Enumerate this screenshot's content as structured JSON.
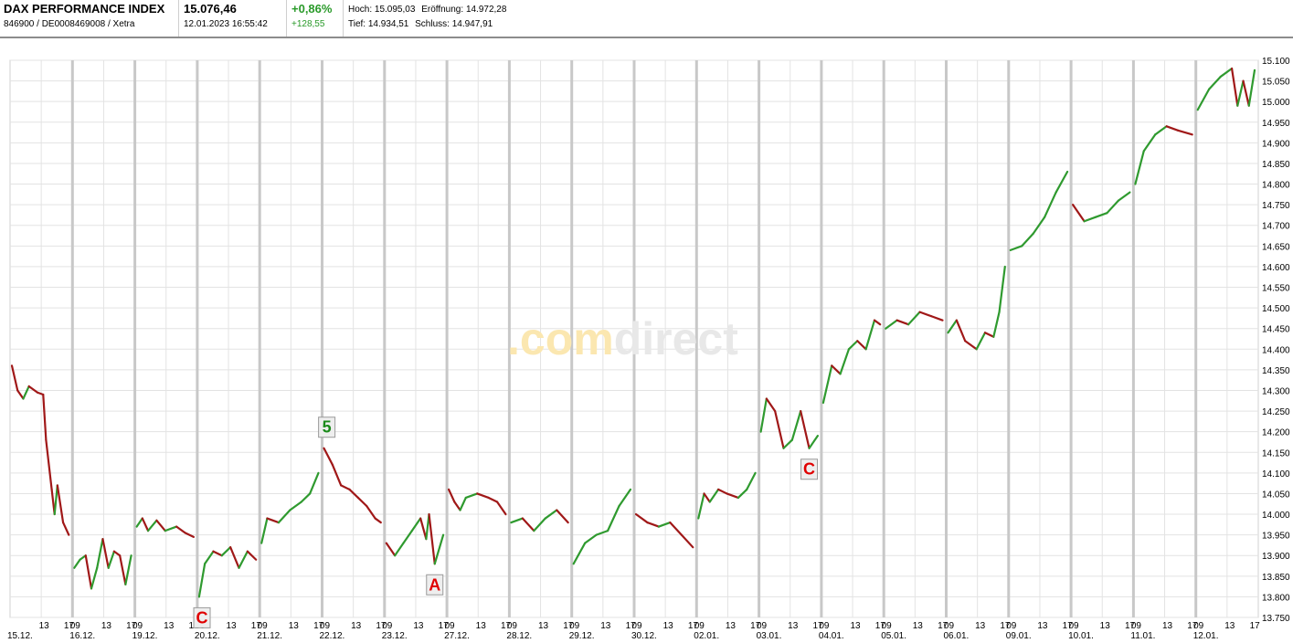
{
  "header": {
    "title": "DAX PERFORMANCE INDEX",
    "identifier": "846900 / DE0008469008 / Xetra",
    "price": "15.076,46",
    "datetime": "12.01.2023 16:55:42",
    "change_pct": "+0,86%",
    "change_abs": "+128,55",
    "hoch_label": "Hoch:",
    "hoch_value": "15.095,03",
    "eroeffnung_label": "Eröffnung:",
    "eroeffnung_value": "14.972,28",
    "tief_label": "Tief:",
    "tief_value": "14.934,51",
    "schluss_label": "Schluss:",
    "schluss_value": "14.947,91"
  },
  "watermark": {
    "part1": ".com",
    "part2": "direct"
  },
  "colors": {
    "up": "#2f9a2f",
    "down": "#a01818",
    "grid": "#e3e3e3",
    "day_sep": "#c8c8c8",
    "wm1": "#fbe7b0",
    "wm2": "#e8e8e8",
    "annotation_red": "#e00000",
    "annotation_green": "#1a8a1a"
  },
  "chart_data": {
    "type": "line",
    "title": "",
    "xlabel": "",
    "ylabel": "",
    "ylim": [
      13750,
      15100
    ],
    "y_ticks": [
      13750,
      13800,
      13850,
      13900,
      13950,
      14000,
      14050,
      14100,
      14150,
      14200,
      14250,
      14300,
      14350,
      14400,
      14450,
      14500,
      14550,
      14600,
      14650,
      14700,
      14750,
      14800,
      14850,
      14900,
      14950,
      15000,
      15050,
      15100
    ],
    "y_tick_labels": [
      "13.750",
      "13.800",
      "13.850",
      "13.900",
      "13.950",
      "14.000",
      "14.050",
      "14.100",
      "14.150",
      "14.200",
      "14.250",
      "14.300",
      "14.350",
      "14.400",
      "14.450",
      "14.500",
      "14.550",
      "14.600",
      "14.650",
      "14.700",
      "14.750",
      "14.800",
      "14.850",
      "14.900",
      "14.950",
      "15.000",
      "15.050",
      "15.100"
    ],
    "days": [
      "15.12.",
      "16.12.",
      "19.12.",
      "20.12.",
      "21.12.",
      "22.12.",
      "23.12.",
      "27.12.",
      "28.12.",
      "29.12.",
      "30.12.",
      "02.01.",
      "03.01.",
      "04.01.",
      "05.01.",
      "06.01.",
      "09.01.",
      "10.01.",
      "11.01.",
      "12.01."
    ],
    "hour_labels": [
      "09",
      "13",
      "17"
    ],
    "series": [
      {
        "points": [
          {
            "day": 0,
            "t": 0.0,
            "v": 14360
          },
          {
            "day": 0,
            "t": 0.1,
            "v": 14300
          },
          {
            "day": 0,
            "t": 0.2,
            "v": 14280
          },
          {
            "day": 0,
            "t": 0.3,
            "v": 14310
          },
          {
            "day": 0,
            "t": 0.45,
            "v": 14295
          },
          {
            "day": 0,
            "t": 0.55,
            "v": 14290
          },
          {
            "day": 0,
            "t": 0.6,
            "v": 14180
          },
          {
            "day": 0,
            "t": 0.7,
            "v": 14060
          },
          {
            "day": 0,
            "t": 0.75,
            "v": 14000
          },
          {
            "day": 0,
            "t": 0.8,
            "v": 14070
          },
          {
            "day": 0,
            "t": 0.9,
            "v": 13980
          },
          {
            "day": 0,
            "t": 1.0,
            "v": 13950
          },
          {
            "day": 1,
            "t": 0.0,
            "v": 13870
          },
          {
            "day": 1,
            "t": 0.1,
            "v": 13890
          },
          {
            "day": 1,
            "t": 0.2,
            "v": 13900
          },
          {
            "day": 1,
            "t": 0.3,
            "v": 13820
          },
          {
            "day": 1,
            "t": 0.4,
            "v": 13870
          },
          {
            "day": 1,
            "t": 0.5,
            "v": 13940
          },
          {
            "day": 1,
            "t": 0.6,
            "v": 13870
          },
          {
            "day": 1,
            "t": 0.7,
            "v": 13910
          },
          {
            "day": 1,
            "t": 0.8,
            "v": 13900
          },
          {
            "day": 1,
            "t": 0.9,
            "v": 13830
          },
          {
            "day": 1,
            "t": 1.0,
            "v": 13900
          },
          {
            "day": 2,
            "t": 0.0,
            "v": 13970
          },
          {
            "day": 2,
            "t": 0.1,
            "v": 13990
          },
          {
            "day": 2,
            "t": 0.2,
            "v": 13960
          },
          {
            "day": 2,
            "t": 0.35,
            "v": 13985
          },
          {
            "day": 2,
            "t": 0.5,
            "v": 13960
          },
          {
            "day": 2,
            "t": 0.7,
            "v": 13970
          },
          {
            "day": 2,
            "t": 0.85,
            "v": 13955
          },
          {
            "day": 2,
            "t": 1.0,
            "v": 13945
          },
          {
            "day": 3,
            "t": 0.0,
            "v": 13800
          },
          {
            "day": 3,
            "t": 0.1,
            "v": 13880
          },
          {
            "day": 3,
            "t": 0.25,
            "v": 13910
          },
          {
            "day": 3,
            "t": 0.4,
            "v": 13900
          },
          {
            "day": 3,
            "t": 0.55,
            "v": 13920
          },
          {
            "day": 3,
            "t": 0.7,
            "v": 13870
          },
          {
            "day": 3,
            "t": 0.85,
            "v": 13910
          },
          {
            "day": 3,
            "t": 1.0,
            "v": 13890
          },
          {
            "day": 4,
            "t": 0.0,
            "v": 13930
          },
          {
            "day": 4,
            "t": 0.1,
            "v": 13990
          },
          {
            "day": 4,
            "t": 0.3,
            "v": 13980
          },
          {
            "day": 4,
            "t": 0.5,
            "v": 14010
          },
          {
            "day": 4,
            "t": 0.7,
            "v": 14030
          },
          {
            "day": 4,
            "t": 0.85,
            "v": 14050
          },
          {
            "day": 4,
            "t": 1.0,
            "v": 14100
          },
          {
            "day": 5,
            "t": 0.0,
            "v": 14160
          },
          {
            "day": 5,
            "t": 0.15,
            "v": 14120
          },
          {
            "day": 5,
            "t": 0.3,
            "v": 14070
          },
          {
            "day": 5,
            "t": 0.45,
            "v": 14060
          },
          {
            "day": 5,
            "t": 0.6,
            "v": 14040
          },
          {
            "day": 5,
            "t": 0.75,
            "v": 14020
          },
          {
            "day": 5,
            "t": 0.9,
            "v": 13990
          },
          {
            "day": 5,
            "t": 1.0,
            "v": 13980
          },
          {
            "day": 6,
            "t": 0.0,
            "v": 13930
          },
          {
            "day": 6,
            "t": 0.15,
            "v": 13900
          },
          {
            "day": 6,
            "t": 0.3,
            "v": 13930
          },
          {
            "day": 6,
            "t": 0.45,
            "v": 13960
          },
          {
            "day": 6,
            "t": 0.6,
            "v": 13990
          },
          {
            "day": 6,
            "t": 0.7,
            "v": 13940
          },
          {
            "day": 6,
            "t": 0.75,
            "v": 14000
          },
          {
            "day": 6,
            "t": 0.85,
            "v": 13880
          },
          {
            "day": 6,
            "t": 1.0,
            "v": 13950
          },
          {
            "day": 7,
            "t": 0.0,
            "v": 14060
          },
          {
            "day": 7,
            "t": 0.1,
            "v": 14030
          },
          {
            "day": 7,
            "t": 0.2,
            "v": 14010
          },
          {
            "day": 7,
            "t": 0.3,
            "v": 14040
          },
          {
            "day": 7,
            "t": 0.5,
            "v": 14050
          },
          {
            "day": 7,
            "t": 0.7,
            "v": 14040
          },
          {
            "day": 7,
            "t": 0.85,
            "v": 14030
          },
          {
            "day": 7,
            "t": 1.0,
            "v": 14000
          },
          {
            "day": 8,
            "t": 0.0,
            "v": 13980
          },
          {
            "day": 8,
            "t": 0.2,
            "v": 13990
          },
          {
            "day": 8,
            "t": 0.4,
            "v": 13960
          },
          {
            "day": 8,
            "t": 0.6,
            "v": 13990
          },
          {
            "day": 8,
            "t": 0.8,
            "v": 14010
          },
          {
            "day": 8,
            "t": 1.0,
            "v": 13980
          },
          {
            "day": 9,
            "t": 0.0,
            "v": 13880
          },
          {
            "day": 9,
            "t": 0.2,
            "v": 13930
          },
          {
            "day": 9,
            "t": 0.4,
            "v": 13950
          },
          {
            "day": 9,
            "t": 0.6,
            "v": 13960
          },
          {
            "day": 9,
            "t": 0.8,
            "v": 14020
          },
          {
            "day": 9,
            "t": 1.0,
            "v": 14060
          },
          {
            "day": 10,
            "t": 0.0,
            "v": 14000
          },
          {
            "day": 10,
            "t": 0.2,
            "v": 13980
          },
          {
            "day": 10,
            "t": 0.4,
            "v": 13970
          },
          {
            "day": 10,
            "t": 0.6,
            "v": 13980
          },
          {
            "day": 10,
            "t": 0.8,
            "v": 13950
          },
          {
            "day": 10,
            "t": 1.0,
            "v": 13920
          },
          {
            "day": 11,
            "t": 0.0,
            "v": 13990
          },
          {
            "day": 11,
            "t": 0.1,
            "v": 14050
          },
          {
            "day": 11,
            "t": 0.2,
            "v": 14030
          },
          {
            "day": 11,
            "t": 0.35,
            "v": 14060
          },
          {
            "day": 11,
            "t": 0.5,
            "v": 14050
          },
          {
            "day": 11,
            "t": 0.7,
            "v": 14040
          },
          {
            "day": 11,
            "t": 0.85,
            "v": 14060
          },
          {
            "day": 11,
            "t": 1.0,
            "v": 14100
          },
          {
            "day": 12,
            "t": 0.0,
            "v": 14200
          },
          {
            "day": 12,
            "t": 0.1,
            "v": 14280
          },
          {
            "day": 12,
            "t": 0.25,
            "v": 14250
          },
          {
            "day": 12,
            "t": 0.4,
            "v": 14160
          },
          {
            "day": 12,
            "t": 0.55,
            "v": 14180
          },
          {
            "day": 12,
            "t": 0.7,
            "v": 14250
          },
          {
            "day": 12,
            "t": 0.85,
            "v": 14160
          },
          {
            "day": 12,
            "t": 1.0,
            "v": 14190
          },
          {
            "day": 13,
            "t": 0.0,
            "v": 14270
          },
          {
            "day": 13,
            "t": 0.15,
            "v": 14360
          },
          {
            "day": 13,
            "t": 0.3,
            "v": 14340
          },
          {
            "day": 13,
            "t": 0.45,
            "v": 14400
          },
          {
            "day": 13,
            "t": 0.6,
            "v": 14420
          },
          {
            "day": 13,
            "t": 0.75,
            "v": 14400
          },
          {
            "day": 13,
            "t": 0.9,
            "v": 14470
          },
          {
            "day": 13,
            "t": 1.0,
            "v": 14460
          },
          {
            "day": 14,
            "t": 0.0,
            "v": 14450
          },
          {
            "day": 14,
            "t": 0.2,
            "v": 14470
          },
          {
            "day": 14,
            "t": 0.4,
            "v": 14460
          },
          {
            "day": 14,
            "t": 0.6,
            "v": 14490
          },
          {
            "day": 14,
            "t": 0.8,
            "v": 14480
          },
          {
            "day": 14,
            "t": 1.0,
            "v": 14470
          },
          {
            "day": 15,
            "t": 0.0,
            "v": 14440
          },
          {
            "day": 15,
            "t": 0.15,
            "v": 14470
          },
          {
            "day": 15,
            "t": 0.3,
            "v": 14420
          },
          {
            "day": 15,
            "t": 0.5,
            "v": 14400
          },
          {
            "day": 15,
            "t": 0.65,
            "v": 14440
          },
          {
            "day": 15,
            "t": 0.8,
            "v": 14430
          },
          {
            "day": 15,
            "t": 0.9,
            "v": 14490
          },
          {
            "day": 15,
            "t": 1.0,
            "v": 14600
          },
          {
            "day": 16,
            "t": 0.0,
            "v": 14640
          },
          {
            "day": 16,
            "t": 0.2,
            "v": 14650
          },
          {
            "day": 16,
            "t": 0.4,
            "v": 14680
          },
          {
            "day": 16,
            "t": 0.6,
            "v": 14720
          },
          {
            "day": 16,
            "t": 0.8,
            "v": 14780
          },
          {
            "day": 16,
            "t": 1.0,
            "v": 14830
          },
          {
            "day": 17,
            "t": 0.0,
            "v": 14750
          },
          {
            "day": 17,
            "t": 0.2,
            "v": 14710
          },
          {
            "day": 17,
            "t": 0.4,
            "v": 14720
          },
          {
            "day": 17,
            "t": 0.6,
            "v": 14730
          },
          {
            "day": 17,
            "t": 0.8,
            "v": 14760
          },
          {
            "day": 17,
            "t": 1.0,
            "v": 14780
          },
          {
            "day": 18,
            "t": 0.0,
            "v": 14800
          },
          {
            "day": 18,
            "t": 0.15,
            "v": 14880
          },
          {
            "day": 18,
            "t": 0.35,
            "v": 14920
          },
          {
            "day": 18,
            "t": 0.55,
            "v": 14940
          },
          {
            "day": 18,
            "t": 0.75,
            "v": 14930
          },
          {
            "day": 18,
            "t": 1.0,
            "v": 14920
          },
          {
            "day": 19,
            "t": 0.0,
            "v": 14980
          },
          {
            "day": 19,
            "t": 0.2,
            "v": 15030
          },
          {
            "day": 19,
            "t": 0.4,
            "v": 15060
          },
          {
            "day": 19,
            "t": 0.6,
            "v": 15080
          },
          {
            "day": 19,
            "t": 0.7,
            "v": 14990
          },
          {
            "day": 19,
            "t": 0.8,
            "v": 15050
          },
          {
            "day": 19,
            "t": 0.9,
            "v": 14990
          },
          {
            "day": 19,
            "t": 1.0,
            "v": 15076
          }
        ]
      }
    ],
    "annotations": [
      {
        "label": "C",
        "day": 3,
        "t": 0.05,
        "v": 13800,
        "color": "red",
        "position": "below"
      },
      {
        "label": "5",
        "day": 5,
        "t": 0.05,
        "v": 14160,
        "color": "green",
        "position": "above"
      },
      {
        "label": "A",
        "day": 6,
        "t": 0.85,
        "v": 13880,
        "color": "red",
        "position": "below"
      },
      {
        "label": "C",
        "day": 12,
        "t": 0.85,
        "v": 14160,
        "color": "red",
        "position": "below"
      }
    ]
  }
}
